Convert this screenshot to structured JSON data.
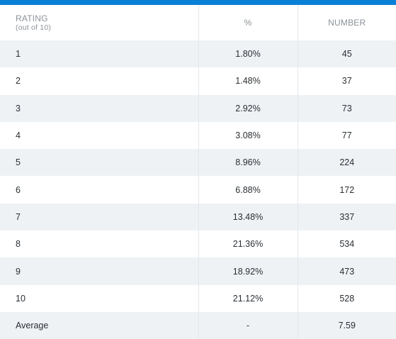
{
  "table": {
    "headers": {
      "rating_main": "RATING",
      "rating_sub": "(out of 10)",
      "percent": "%",
      "number": "NUMBER"
    },
    "rows": [
      {
        "rating": "1",
        "percent": "1.80%",
        "number": "45"
      },
      {
        "rating": "2",
        "percent": "1.48%",
        "number": "37"
      },
      {
        "rating": "3",
        "percent": "2.92%",
        "number": "73"
      },
      {
        "rating": "4",
        "percent": "3.08%",
        "number": "77"
      },
      {
        "rating": "5",
        "percent": "8.96%",
        "number": "224"
      },
      {
        "rating": "6",
        "percent": "6.88%",
        "number": "172"
      },
      {
        "rating": "7",
        "percent": "13.48%",
        "number": "337"
      },
      {
        "rating": "8",
        "percent": "21.36%",
        "number": "534"
      },
      {
        "rating": "9",
        "percent": "18.92%",
        "number": "473"
      },
      {
        "rating": "10",
        "percent": "21.12%",
        "number": "528"
      },
      {
        "rating": "Average",
        "percent": "-",
        "number": "7.59"
      }
    ]
  },
  "colors": {
    "accent_bar": "#0a7fd6",
    "row_alt": "#eef2f5",
    "header_text": "#8b9298",
    "body_text": "#2b2f33"
  }
}
